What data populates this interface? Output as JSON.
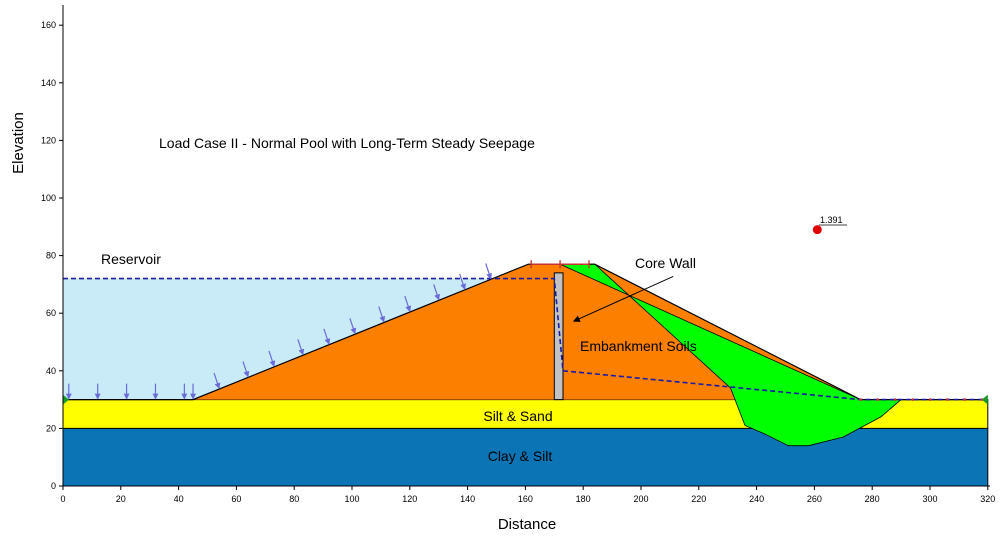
{
  "title": "Load Case II - Normal Pool with Long-Term Steady Seepage",
  "axes": {
    "xlabel": "Distance",
    "ylabel": "Elevation",
    "xlim": [
      0,
      320
    ],
    "ylim": [
      0,
      175
    ],
    "xticks": [
      "0",
      "20",
      "40",
      "60",
      "80",
      "100",
      "120",
      "140",
      "160",
      "180",
      "200",
      "220",
      "240",
      "260",
      "280",
      "300",
      "320"
    ],
    "yticks": [
      "0",
      "20",
      "40",
      "60",
      "80",
      "100",
      "120",
      "140",
      "160"
    ]
  },
  "labels": {
    "reservoir": "Reservoir",
    "core_wall": "Core Wall",
    "embankment": "Embankment Soils",
    "silt_sand": "Silt & Sand",
    "clay_silt": "Clay & Silt"
  },
  "factor_of_safety": {
    "value": "1.391",
    "x": 261,
    "y": 89
  },
  "geometry": {
    "foundation_clay": [
      [
        0,
        0
      ],
      [
        320,
        0
      ],
      [
        320,
        20
      ],
      [
        0,
        20
      ]
    ],
    "foundation_silt": [
      [
        0,
        20
      ],
      [
        320,
        20
      ],
      [
        320,
        30
      ],
      [
        0,
        30
      ]
    ],
    "reservoir": [
      [
        0,
        30
      ],
      [
        45,
        30
      ],
      [
        148,
        72
      ],
      [
        0,
        72
      ]
    ],
    "embankment": [
      [
        45,
        30
      ],
      [
        161,
        77
      ],
      [
        184,
        77
      ],
      [
        276,
        30
      ]
    ],
    "slip_surface": [
      [
        172,
        77
      ],
      [
        184,
        77
      ],
      [
        231,
        34
      ],
      [
        236,
        21
      ],
      [
        243,
        18
      ],
      [
        251,
        14
      ],
      [
        258,
        14
      ],
      [
        270,
        17
      ],
      [
        283,
        24
      ],
      [
        290,
        30
      ],
      [
        276,
        30
      ]
    ],
    "core_wall": [
      [
        170,
        30
      ],
      [
        173,
        30
      ],
      [
        173,
        74
      ],
      [
        170,
        74
      ]
    ],
    "surface_line": [
      [
        0,
        30
      ],
      [
        45,
        30
      ],
      [
        161,
        77
      ],
      [
        184,
        77
      ],
      [
        276,
        30
      ],
      [
        320,
        30
      ]
    ],
    "phreatic_line": [
      [
        0,
        72
      ],
      [
        170,
        72
      ],
      [
        173,
        40
      ],
      [
        276,
        30
      ],
      [
        320,
        30
      ]
    ],
    "pressure_arrows_x": [
      2,
      12,
      22,
      32,
      42,
      45,
      54,
      64,
      73,
      83,
      92,
      101,
      111,
      120,
      130,
      139,
      148
    ],
    "top_ticks_x": [
      162,
      172,
      182
    ],
    "toe_ticks_x": [
      276,
      282,
      288,
      294,
      300,
      306,
      312,
      318
    ],
    "boundary_nodes": [
      [
        0,
        30
      ],
      [
        320,
        30
      ]
    ],
    "core_label_arrow": [
      [
        198,
        70
      ],
      [
        174,
        60
      ]
    ]
  },
  "colors": {
    "clay": "#0a74b4",
    "silt_sand": "#ffff00",
    "reservoir": "#c9ebf8",
    "embankment": "#fd7f00",
    "slip": "#00ff00",
    "core": "#c2c2c2",
    "phreatic": "#1b1ba8",
    "arrows": "#6a6ad8",
    "ticks": "#c83232",
    "fs_point": "#e00000",
    "nodes": "#1a9a2a"
  }
}
